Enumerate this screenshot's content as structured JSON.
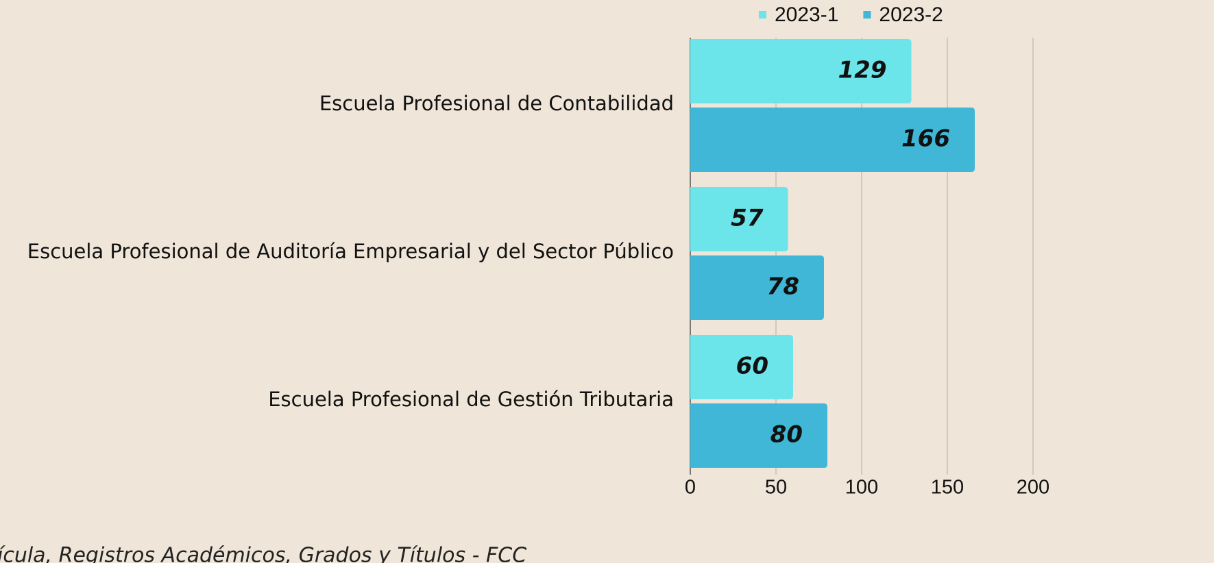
{
  "chart_data": {
    "type": "bar",
    "orientation": "horizontal",
    "categories": [
      "Escuela Profesional de Contabilidad",
      "Escuela Profesional de Auditoría Empresarial y del Sector Público",
      "Escuela Profesional de Gestión Tributaria"
    ],
    "series": [
      {
        "name": "2023-1",
        "color": "#6ce5ea",
        "values": [
          129,
          57,
          60
        ]
      },
      {
        "name": "2023-2",
        "color": "#40b7d6",
        "values": [
          166,
          78,
          80
        ]
      }
    ],
    "xlim": [
      0,
      200
    ],
    "xticks": [
      0,
      50,
      100,
      150,
      200
    ],
    "grid": true,
    "legend": "top",
    "source": "ícula, Registros Académicos, Grados y Títulos - FCC"
  }
}
